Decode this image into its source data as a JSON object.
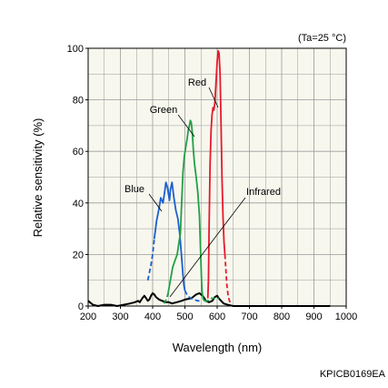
{
  "chart_data": {
    "type": "line",
    "title": "",
    "condition_note": "(Ta=25 °C)",
    "figure_code": "KPICB0169EA",
    "xlabel": "Wavelength (nm)",
    "ylabel": "Relative sensitivity (%)",
    "xlim": [
      200,
      1000
    ],
    "ylim": [
      0,
      100
    ],
    "x_ticks": [
      200,
      300,
      400,
      500,
      600,
      700,
      800,
      900,
      1000
    ],
    "y_ticks": [
      0,
      20,
      40,
      60,
      80,
      100
    ],
    "grid": true,
    "colors": {
      "Blue": "#1a5fd0",
      "Green": "#22a046",
      "Red": "#e8192c",
      "Infrared": "#000000",
      "grid": "#9a9a9a",
      "plot_background": "#f7f7ee"
    },
    "callouts": [
      {
        "series": "Blue",
        "text": "Blue"
      },
      {
        "series": "Green",
        "text": "Green"
      },
      {
        "series": "Red",
        "text": "Red"
      },
      {
        "series": "Infrared",
        "text": "Infrared"
      }
    ],
    "series": [
      {
        "name": "Blue",
        "solid": [
          [
            405,
            26
          ],
          [
            412,
            33
          ],
          [
            420,
            38
          ],
          [
            425,
            42
          ],
          [
            432,
            40
          ],
          [
            437,
            44
          ],
          [
            441,
            48
          ],
          [
            446,
            46
          ],
          [
            452,
            41
          ],
          [
            455,
            45
          ],
          [
            460,
            48
          ],
          [
            466,
            42
          ],
          [
            472,
            37
          ],
          [
            478,
            34
          ],
          [
            484,
            28
          ],
          [
            488,
            22
          ],
          [
            491,
            17
          ],
          [
            494,
            12
          ],
          [
            497,
            8
          ],
          [
            500,
            6
          ]
        ],
        "dashed": [
          [
            385,
            10
          ],
          [
            390,
            13
          ],
          [
            395,
            16
          ],
          [
            400,
            20
          ],
          [
            405,
            26
          ]
        ],
        "dashed2": [
          [
            500,
            6
          ],
          [
            508,
            4
          ],
          [
            518,
            3
          ],
          [
            528,
            2.5
          ],
          [
            540,
            2
          ],
          [
            550,
            2
          ]
        ]
      },
      {
        "name": "Green",
        "solid": [
          [
            448,
            5
          ],
          [
            455,
            10
          ],
          [
            462,
            15
          ],
          [
            470,
            18
          ],
          [
            476,
            20
          ],
          [
            482,
            25
          ],
          [
            486,
            28
          ],
          [
            490,
            40
          ],
          [
            494,
            52
          ],
          [
            498,
            58
          ],
          [
            503,
            62
          ],
          [
            507,
            65
          ],
          [
            510,
            68
          ],
          [
            514,
            70
          ],
          [
            517,
            72
          ],
          [
            520,
            71
          ],
          [
            523,
            67
          ],
          [
            526,
            61
          ],
          [
            530,
            55
          ],
          [
            535,
            50
          ],
          [
            540,
            44
          ],
          [
            545,
            35
          ],
          [
            548,
            24
          ],
          [
            551,
            12
          ],
          [
            553,
            6
          ],
          [
            556,
            3
          ],
          [
            560,
            2
          ]
        ],
        "dashed": [
          [
            435,
            1
          ],
          [
            440,
            2
          ],
          [
            444,
            3
          ],
          [
            448,
            5
          ]
        ],
        "dashed2": [
          [
            560,
            2
          ],
          [
            570,
            2
          ],
          [
            582,
            3
          ],
          [
            595,
            3
          ],
          [
            605,
            3
          ]
        ]
      },
      {
        "name": "Red",
        "solid": [
          [
            571,
            3
          ],
          [
            573,
            10
          ],
          [
            575,
            30
          ],
          [
            578,
            55
          ],
          [
            581,
            68
          ],
          [
            584,
            74
          ],
          [
            587,
            77
          ],
          [
            590,
            76
          ],
          [
            593,
            79
          ],
          [
            596,
            86
          ],
          [
            600,
            95
          ],
          [
            603,
            99
          ],
          [
            606,
            98
          ],
          [
            609,
            90
          ],
          [
            612,
            70
          ],
          [
            615,
            50
          ],
          [
            618,
            35
          ],
          [
            621,
            25
          ],
          [
            624,
            20
          ]
        ],
        "dashed": [
          [
            624,
            20
          ],
          [
            627,
            14
          ],
          [
            630,
            8
          ],
          [
            634,
            4
          ],
          [
            638,
            2
          ],
          [
            642,
            1
          ]
        ],
        "dashed2": []
      },
      {
        "name": "Infrared",
        "solid": [
          [
            200,
            2
          ],
          [
            205,
            1.5
          ],
          [
            215,
            0.5
          ],
          [
            230,
            0
          ],
          [
            250,
            0.5
          ],
          [
            270,
            0.5
          ],
          [
            290,
            0
          ],
          [
            310,
            0.5
          ],
          [
            330,
            1
          ],
          [
            345,
            1.5
          ],
          [
            355,
            2
          ],
          [
            360,
            1.5
          ],
          [
            368,
            3
          ],
          [
            374,
            4
          ],
          [
            380,
            3
          ],
          [
            385,
            2
          ],
          [
            390,
            2.5
          ],
          [
            395,
            4
          ],
          [
            400,
            5
          ],
          [
            405,
            4.5
          ],
          [
            410,
            3.5
          ],
          [
            420,
            2.5
          ],
          [
            430,
            2
          ],
          [
            440,
            1.5
          ],
          [
            450,
            1.5
          ],
          [
            460,
            1
          ],
          [
            475,
            1.5
          ],
          [
            490,
            2
          ],
          [
            500,
            2.5
          ],
          [
            520,
            3
          ],
          [
            535,
            4.5
          ],
          [
            545,
            5
          ],
          [
            555,
            4
          ],
          [
            565,
            2
          ],
          [
            575,
            1.5
          ],
          [
            585,
            2
          ],
          [
            593,
            3.5
          ],
          [
            600,
            4
          ],
          [
            605,
            3
          ],
          [
            612,
            2
          ],
          [
            620,
            1
          ],
          [
            632,
            0.5
          ],
          [
            650,
            0
          ],
          [
            700,
            0
          ],
          [
            800,
            0
          ],
          [
            900,
            0
          ],
          [
            950,
            0
          ]
        ],
        "dashed": [],
        "dashed2": []
      }
    ]
  }
}
